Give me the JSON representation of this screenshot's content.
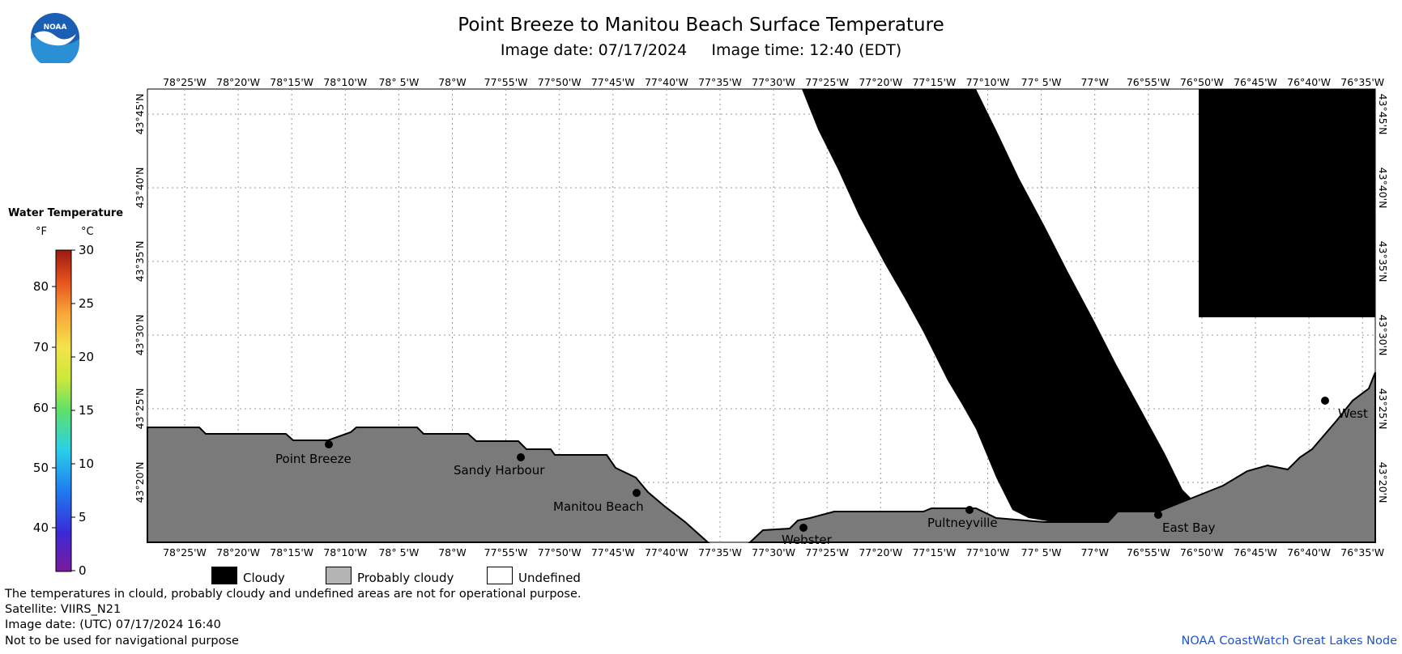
{
  "header": {
    "title": "Point Breeze to Manitou Beach Surface Temperature",
    "subtitle": "Image date: 07/17/2024     Image time: 12:40 (EDT)"
  },
  "logo": {
    "text": "NOAA",
    "icon": "noaa-logo-icon"
  },
  "legend": {
    "title": "Water Temperature",
    "unit_f": "°F",
    "unit_c": "°C",
    "f_ticks": [
      "80",
      "70",
      "60",
      "50",
      "40"
    ],
    "c_ticks": [
      "30",
      "25",
      "20",
      "15",
      "10",
      "5",
      "0"
    ]
  },
  "map": {
    "lon_labels": [
      "78°25'W",
      "78°20'W",
      "78°15'W",
      "78°10'W",
      "78° 5'W",
      "78°W",
      "77°55'W",
      "77°50'W",
      "77°45'W",
      "77°40'W",
      "77°35'W",
      "77°30'W",
      "77°25'W",
      "77°20'W",
      "77°15'W",
      "77°10'W",
      "77° 5'W",
      "77°W",
      "76°55'W",
      "76°50'W",
      "76°45'W",
      "76°40'W",
      "76°35'W"
    ],
    "lat_labels": [
      "43°45'N",
      "43°40'N",
      "43°35'N",
      "43°30'N",
      "43°25'N",
      "43°20'N"
    ],
    "places": [
      "Point Breeze",
      "Sandy Harbour",
      "Manitou Beach",
      "Webster",
      "Pultneyville",
      "East Bay",
      "West"
    ]
  },
  "key": {
    "cloudy": "Cloudy",
    "probably_cloudy": "Probably cloudy",
    "undefined": "Undefined"
  },
  "footer": {
    "line1": "The temperatures in clould, probably cloudy and undefined areas are not for operational purpose.",
    "line2": "Satellite: VIIRS_N21",
    "line3": "Image date: (UTC) 07/17/2024  16:40",
    "line4": "Not to be used for navigational purpose",
    "credit": "NOAA CoastWatch Great Lakes Node"
  },
  "colors": {
    "land": "#7a7a7a",
    "cloud": "#000000",
    "grid": "#9a9a9a",
    "credit": "#1f53c9"
  }
}
